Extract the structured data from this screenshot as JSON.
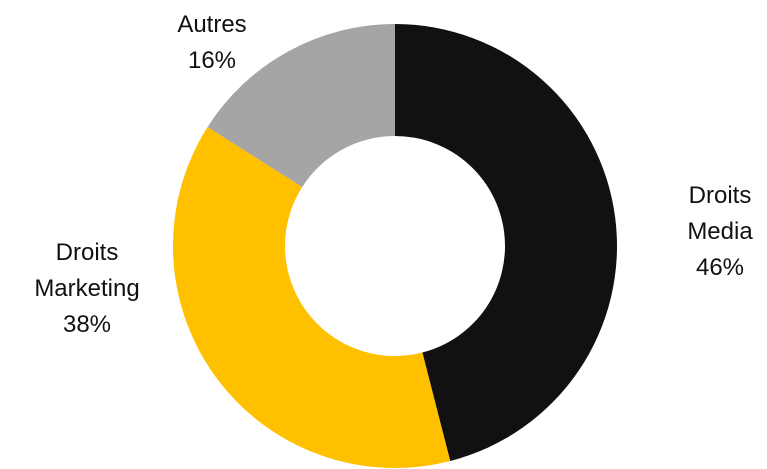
{
  "chart_data": {
    "type": "donut",
    "categories": [
      "Droits Media",
      "Droits Marketing",
      "Autres"
    ],
    "values": [
      46,
      38,
      16
    ],
    "value_labels": [
      "46%",
      "38%",
      "16%"
    ],
    "colors": [
      "#111111",
      "#ffc000",
      "#a5a5a5"
    ]
  }
}
